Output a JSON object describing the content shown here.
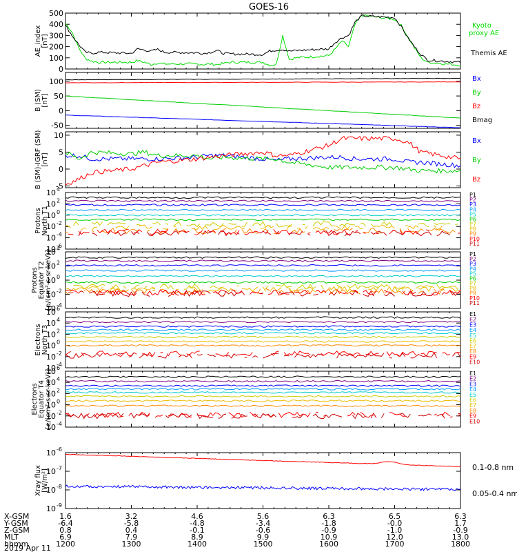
{
  "title": "GOES-16",
  "ephemeris": {
    "labels": [
      "X-GSM",
      "Y-GSM",
      "Z-GSM",
      "MLT",
      "hhmm",
      "2019 Apr 11"
    ],
    "columns": [
      [
        "1.6",
        "-6.4",
        "0.8",
        "6.9",
        "1200"
      ],
      [
        "3.2",
        "-5.8",
        "0.4",
        "7.9",
        "1300"
      ],
      [
        "4.6",
        "-4.8",
        "-0.1",
        "8.9",
        "1400"
      ],
      [
        "5.6",
        "-3.4",
        "-0.6",
        "9.9",
        "1500"
      ],
      [
        "6.3",
        "-1.8",
        "-0.9",
        "10.9",
        "1600"
      ],
      [
        "6.5",
        "-0.0",
        "-1.0",
        "12.0",
        "1700"
      ],
      [
        "6.3",
        "1.7",
        "-0.9",
        "13.0",
        "1800"
      ]
    ]
  },
  "chart_data": [
    {
      "type": "line",
      "ylabel": "AE_index [nT]",
      "ylim": [
        0,
        500
      ],
      "yticks": [
        "0",
        "100",
        "200",
        "300",
        "400",
        "500"
      ],
      "x": [
        1200,
        1210,
        1220,
        1230,
        1240,
        1250,
        1300,
        1310,
        1320,
        1330,
        1340,
        1350,
        1400,
        1410,
        1420,
        1430,
        1440,
        1450,
        1500,
        1510,
        1520,
        1530,
        1540,
        1550,
        1600,
        1610,
        1620,
        1630,
        1640,
        1650,
        1700,
        1710,
        1720,
        1730,
        1740,
        1750,
        1800
      ],
      "series": [
        {
          "name": "Kyoto proxy AE",
          "color": "#00dd00",
          "values": [
            410,
            330,
            190,
            95,
            70,
            60,
            60,
            75,
            60,
            40,
            55,
            45,
            45,
            40,
            45,
            40,
            50,
            60,
            60,
            35,
            40,
            300,
            85,
            100,
            120,
            180,
            250,
            200,
            400,
            480,
            445,
            390,
            290,
            190,
            100,
            60,
            35
          ]
        },
        {
          "name": "Themis AE",
          "color": "#000000",
          "values": [
            390,
            300,
            220,
            150,
            140,
            150,
            140,
            180,
            170,
            160,
            175,
            150,
            145,
            140,
            150,
            165,
            140,
            135,
            130,
            160,
            170,
            175,
            160,
            165,
            180,
            240,
            280,
            300,
            420,
            475,
            460,
            380,
            280,
            200,
            130,
            80,
            60
          ]
        }
      ]
    },
    {
      "type": "line",
      "ylabel": "B (SM) [nT]",
      "ylim": [
        -60,
        130
      ],
      "yticks": [
        "-50",
        "0",
        "50",
        "100"
      ],
      "x": [
        1200,
        1800
      ],
      "series": [
        {
          "name": "Bx",
          "color": "#0000ff",
          "values": [
            -15,
            -58
          ]
        },
        {
          "name": "By",
          "color": "#00cc00",
          "values": [
            50,
            -25
          ]
        },
        {
          "name": "Bz",
          "color": "#ff0000",
          "values": [
            95,
            98
          ]
        },
        {
          "name": "Bmag",
          "color": "#000000",
          "values": [
            105,
            110
          ]
        }
      ]
    },
    {
      "type": "line",
      "ylabel": "B (SM)-IGRF (SM) [nT]",
      "ylim": [
        -5.5,
        11
      ],
      "yticks": [
        "-5",
        "0",
        "5",
        "10"
      ],
      "x": [
        1200,
        1220,
        1240,
        1300,
        1320,
        1340,
        1400,
        1420,
        1440,
        1500,
        1520,
        1540,
        1600,
        1620,
        1640,
        1700,
        1720,
        1740,
        1800
      ],
      "series": [
        {
          "name": "Bx",
          "color": "#0000ff",
          "values": [
            4,
            4,
            3,
            3,
            3,
            3,
            3.5,
            4,
            4,
            3,
            2.5,
            3,
            3.5,
            3.5,
            3,
            3,
            2,
            2,
            1
          ]
        },
        {
          "name": "By",
          "color": "#00cc00",
          "values": [
            5,
            3,
            5,
            4.5,
            5,
            4,
            4,
            3,
            3.5,
            3,
            3,
            2,
            0.5,
            0.5,
            0.5,
            0.5,
            0,
            -0.5,
            -0.5
          ]
        },
        {
          "name": "Bz",
          "color": "#ff0000",
          "values": [
            -4.5,
            -3,
            -1,
            0,
            1,
            2,
            3,
            3.5,
            4,
            5,
            4,
            4,
            7,
            9,
            9,
            9,
            8,
            5,
            3
          ]
        }
      ]
    },
    {
      "type": "line",
      "ylabel": "Protons North T1",
      "yticks": [
        "10-6",
        "10-4",
        "10-2",
        "100",
        "102",
        "104"
      ],
      "legend": [
        "P1",
        "P2",
        "P3",
        "P4",
        "P5",
        "P6",
        "P7",
        "P8",
        "P9",
        "P10",
        "P11"
      ],
      "colors": [
        "#000000",
        "#800080",
        "#0000ff",
        "#0099ff",
        "#00cccc",
        "#00cc00",
        "#cccc00",
        "#eebb00",
        "#ff8800",
        "#ff0000",
        "#cc0000"
      ]
    },
    {
      "type": "line",
      "ylabel": "Protons Equator T2 [p/(cm2-s-sr-keV)]",
      "yticks": [
        "10-4",
        "10-2",
        "100",
        "102",
        "104"
      ],
      "legend": [
        "P1",
        "P2",
        "P3",
        "P4",
        "P5",
        "P6",
        "P7",
        "P8",
        "P9",
        "P10",
        "P11"
      ],
      "colors": [
        "#000000",
        "#800080",
        "#0000ff",
        "#0099ff",
        "#00cccc",
        "#00cc00",
        "#cccc00",
        "#eebb00",
        "#ff8800",
        "#ff0000",
        "#cc0000"
      ]
    },
    {
      "type": "line",
      "ylabel": "Electrons North T3",
      "yticks": [
        "10-4",
        "10-2",
        "100",
        "102",
        "104",
        "106"
      ],
      "legend": [
        "E1",
        "E2",
        "E3",
        "E4",
        "E5",
        "E6",
        "E7",
        "E8",
        "E9",
        "E10"
      ],
      "colors": [
        "#000000",
        "#800080",
        "#0000ff",
        "#0099ff",
        "#00cccc",
        "#cccc00",
        "#eebb00",
        "#ff8800",
        "#ff0000",
        "#cc0000"
      ]
    },
    {
      "type": "line",
      "ylabel": "Electrons Equator T4 [e/(cm2-s-sr-keV)]",
      "yticks": [
        "10-4",
        "10-2",
        "100",
        "102",
        "104",
        "106"
      ],
      "legend": [
        "E1",
        "E2",
        "E3",
        "E4",
        "E5",
        "E6",
        "E7",
        "E8",
        "E9",
        "E10"
      ],
      "colors": [
        "#000000",
        "#800080",
        "#0000ff",
        "#0099ff",
        "#00cccc",
        "#cccc00",
        "#eebb00",
        "#ff8800",
        "#ff0000",
        "#cc0000"
      ]
    },
    {
      "type": "line",
      "ylabel": "Xray flux [W/m2]",
      "yticks": [
        "10-9",
        "10-8",
        "10-7",
        "10-6"
      ],
      "series": [
        {
          "name": "0.1-0.8 nm",
          "color": "#ff0000"
        },
        {
          "name": "0.05-0.4 nm",
          "color": "#0000ff"
        }
      ]
    }
  ]
}
